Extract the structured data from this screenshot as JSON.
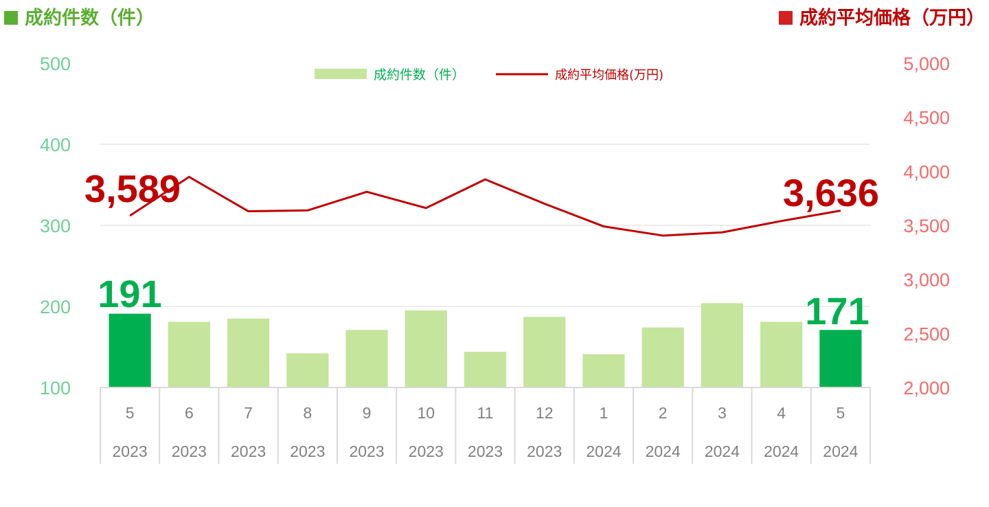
{
  "header": {
    "left_title": "成約件数（件）",
    "right_title": "成約平均価格（万円）"
  },
  "colors": {
    "bar": "#C4E59B",
    "bar_highlight": "#00B050",
    "line": "#C00000",
    "left_axis": "#6FCF97",
    "right_axis": "#F26B6B",
    "grid": "#D9D9D9"
  },
  "chart_data": {
    "type": "bar",
    "categories": [
      "5",
      "6",
      "7",
      "8",
      "9",
      "10",
      "11",
      "12",
      "1",
      "2",
      "3",
      "4",
      "5"
    ],
    "years": [
      "2023",
      "2023",
      "2023",
      "2023",
      "2023",
      "2023",
      "2023",
      "2023",
      "2024",
      "2024",
      "2024",
      "2024",
      "2024"
    ],
    "series": [
      {
        "name": "成約件数（件）",
        "type": "bar",
        "axis": "left",
        "values": [
          191,
          181,
          185,
          142,
          171,
          195,
          144,
          187,
          141,
          174,
          204,
          181,
          171
        ],
        "highlight": [
          0,
          12
        ]
      },
      {
        "name": "成約平均価格(万円)",
        "type": "line",
        "axis": "right",
        "values": [
          3589,
          3948,
          3630,
          3638,
          3810,
          3660,
          3925,
          3700,
          3490,
          3405,
          3435,
          3540,
          3636
        ]
      }
    ],
    "left_axis": {
      "ylim": [
        100,
        500
      ],
      "ticks": [
        "100",
        "200",
        "300",
        "400",
        "500"
      ]
    },
    "right_axis": {
      "ylim": [
        2000,
        5000
      ],
      "ticks": [
        "2,000",
        "2,500",
        "3,000",
        "3,500",
        "4,000",
        "4,500",
        "5,000"
      ]
    },
    "grid": true,
    "legend": "top-center",
    "callouts": {
      "bar_first": "191",
      "bar_last": "171",
      "line_first": "3,589",
      "line_last": "3,636"
    }
  }
}
